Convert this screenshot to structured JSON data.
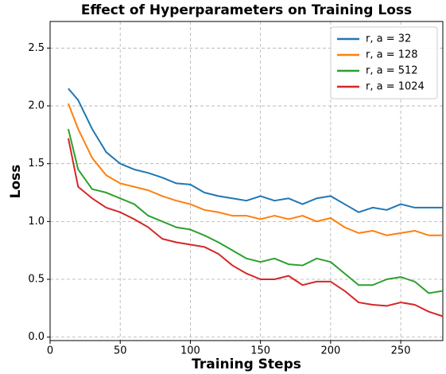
{
  "chart_data": {
    "type": "line",
    "title": "Effect of Hyperparameters on Training Loss",
    "x_label": "Training Steps",
    "y_label": "Loss",
    "x": [
      13,
      20,
      30,
      40,
      50,
      60,
      70,
      80,
      90,
      100,
      110,
      120,
      130,
      140,
      150,
      160,
      170,
      180,
      190,
      200,
      210,
      220,
      230,
      240,
      250,
      260,
      270,
      280
    ],
    "series": [
      {
        "name": "r, a = 32",
        "color": "#1f77b4",
        "values": [
          2.15,
          2.05,
          1.8,
          1.6,
          1.5,
          1.45,
          1.42,
          1.38,
          1.33,
          1.32,
          1.25,
          1.22,
          1.2,
          1.18,
          1.22,
          1.18,
          1.2,
          1.15,
          1.2,
          1.22,
          1.15,
          1.08,
          1.12,
          1.1,
          1.15,
          1.12,
          1.12,
          1.12
        ]
      },
      {
        "name": "r, a = 128",
        "color": "#ff7f0e",
        "values": [
          2.02,
          1.8,
          1.55,
          1.4,
          1.33,
          1.3,
          1.27,
          1.22,
          1.18,
          1.15,
          1.1,
          1.08,
          1.05,
          1.05,
          1.02,
          1.05,
          1.02,
          1.05,
          1.0,
          1.03,
          0.95,
          0.9,
          0.92,
          0.88,
          0.9,
          0.92,
          0.88,
          0.88
        ]
      },
      {
        "name": "r, a = 512",
        "color": "#2ca02c",
        "values": [
          1.8,
          1.45,
          1.28,
          1.25,
          1.2,
          1.15,
          1.05,
          1.0,
          0.95,
          0.93,
          0.88,
          0.82,
          0.75,
          0.68,
          0.65,
          0.68,
          0.63,
          0.62,
          0.68,
          0.65,
          0.55,
          0.45,
          0.45,
          0.5,
          0.52,
          0.48,
          0.38,
          0.4
        ]
      },
      {
        "name": "r, a = 1024",
        "color": "#d62728",
        "values": [
          1.72,
          1.3,
          1.2,
          1.12,
          1.08,
          1.02,
          0.95,
          0.85,
          0.82,
          0.8,
          0.78,
          0.72,
          0.62,
          0.55,
          0.5,
          0.5,
          0.53,
          0.45,
          0.48,
          0.48,
          0.4,
          0.3,
          0.28,
          0.27,
          0.3,
          0.28,
          0.22,
          0.18
        ]
      }
    ],
    "xlim": [
      0,
      280
    ],
    "xticks": [
      0,
      50,
      100,
      150,
      200,
      250
    ],
    "ylim": [
      -0.03,
      2.73
    ],
    "yticks": [
      {
        "value": 0.0,
        "label": "0.0"
      },
      0.5,
      {
        "value": 1.0,
        "label": "1.0"
      },
      1.5,
      {
        "value": 2.0,
        "label": "2.0"
      },
      2.5
    ],
    "grid": true,
    "legend": "upper right"
  }
}
